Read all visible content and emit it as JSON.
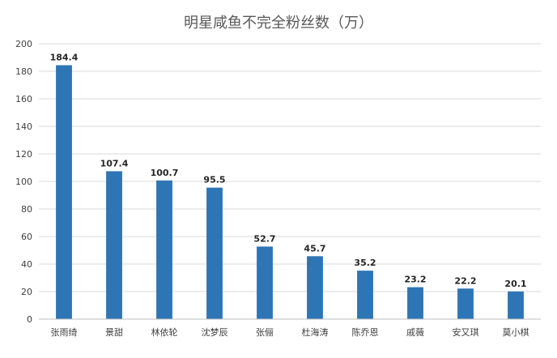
{
  "chart_data": {
    "type": "bar",
    "title": "明星咸鱼不完全粉丝数（万）",
    "xlabel": "",
    "ylabel": "",
    "categories": [
      "张雨绮",
      "景甜",
      "林依轮",
      "沈梦辰",
      "张俪",
      "杜海涛",
      "陈乔恩",
      "戚薇",
      "安又琪",
      "莫小棋"
    ],
    "values": [
      184.4,
      107.4,
      100.7,
      95.5,
      52.7,
      45.7,
      35.2,
      23.2,
      22.2,
      20.1
    ],
    "data_labels": [
      "184.4",
      "107.4",
      "100.7",
      "95.5",
      "52.7",
      "45.7",
      "35.2",
      "23.2",
      "22.2",
      "20.1"
    ],
    "ylim": [
      0,
      200
    ],
    "yticks": [
      0,
      20,
      40,
      60,
      80,
      100,
      120,
      140,
      160,
      180,
      200
    ],
    "grid": true,
    "legend": "none",
    "bar_color": "#2e75b6"
  }
}
